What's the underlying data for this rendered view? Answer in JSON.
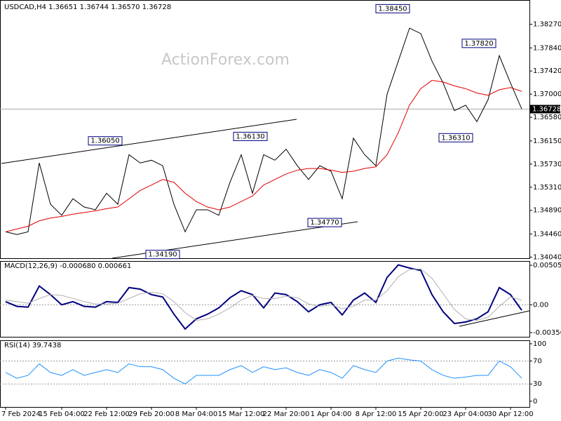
{
  "chart_data": [
    {
      "type": "line",
      "title": "USDCAD,H4  1.36651 1.36744 1.36570 1.36728",
      "watermark": "ActionForex.com",
      "ylim": [
        1.3402,
        1.3871
      ],
      "yticks": [
        {
          "value": 1.3404,
          "label": "1.34040"
        },
        {
          "value": 1.3446,
          "label": "1.34460"
        },
        {
          "value": 1.3489,
          "label": "1.34890"
        },
        {
          "value": 1.3531,
          "label": "1.35310"
        },
        {
          "value": 1.3573,
          "label": "1.35730"
        },
        {
          "value": 1.3615,
          "label": "1.36150"
        },
        {
          "value": 1.3658,
          "label": "1.36580"
        },
        {
          "value": 1.37,
          "label": "1.37000"
        },
        {
          "value": 1.3742,
          "label": "1.37420"
        },
        {
          "value": 1.3784,
          "label": "1.37840"
        },
        {
          "value": 1.3827,
          "label": "1.38270"
        }
      ],
      "last_price": {
        "value": 1.36728,
        "label": "1.36728"
      },
      "annotations": [
        {
          "value": 1.3605,
          "label": "1.36050"
        },
        {
          "value": 1.3613,
          "label": "1.36130"
        },
        {
          "value": 1.3419,
          "label": "1.34190"
        },
        {
          "value": 1.3477,
          "label": "1.34770"
        },
        {
          "value": 1.3845,
          "label": "1.38450"
        },
        {
          "value": 1.3782,
          "label": "1.37820"
        },
        {
          "value": 1.3631,
          "label": "1.36310"
        }
      ],
      "series": [
        {
          "color": "#000000",
          "values": [
            1.345,
            1.3445,
            1.345,
            1.3575,
            1.35,
            1.348,
            1.351,
            1.3495,
            1.349,
            1.352,
            1.35,
            1.359,
            1.3575,
            1.358,
            1.357,
            1.35,
            1.345,
            1.349,
            1.349,
            1.348,
            1.354,
            1.359,
            1.352,
            1.359,
            1.358,
            1.36,
            1.357,
            1.3545,
            1.357,
            1.356,
            1.351,
            1.362,
            1.359,
            1.357,
            1.37,
            1.376,
            1.382,
            1.381,
            1.376,
            1.372,
            1.367,
            1.368,
            1.365,
            1.369,
            1.377,
            1.372,
            1.3673
          ]
        },
        {
          "color": "#e00000",
          "values": [
            1.345,
            1.3455,
            1.346,
            1.347,
            1.3475,
            1.3478,
            1.3482,
            1.3485,
            1.3488,
            1.3492,
            1.3495,
            1.351,
            1.3525,
            1.3535,
            1.3545,
            1.354,
            1.352,
            1.3505,
            1.3495,
            1.349,
            1.3495,
            1.3505,
            1.3515,
            1.3535,
            1.3545,
            1.3555,
            1.3562,
            1.3565,
            1.3565,
            1.3562,
            1.3558,
            1.356,
            1.3565,
            1.3568,
            1.359,
            1.363,
            1.368,
            1.371,
            1.3725,
            1.3722,
            1.3715,
            1.371,
            1.3702,
            1.3698,
            1.3708,
            1.3712,
            1.3705
          ]
        }
      ]
    },
    {
      "type": "line",
      "title": "MACD(12,26,9) -0.000680 0.000661",
      "ylim": [
        -0.0041,
        0.0056
      ],
      "yticks": [
        0.005054,
        {
          "value": 0,
          "label": "0.00"
        },
        -0.003569
      ],
      "series": [
        {
          "color": "#000080",
          "values": [
            0.0004,
            -0.0002,
            -0.0003,
            0.0024,
            0.0013,
            0,
            0.0004,
            -0.0002,
            -0.0003,
            0.0004,
            0.0003,
            0.0022,
            0.002,
            0.0013,
            0.001,
            -0.0012,
            -0.0031,
            -0.0018,
            -0.0012,
            -0.0004,
            0.0009,
            0.0018,
            0.0013,
            -0.0004,
            0.0015,
            0.0013,
            0.0004,
            -0.0009,
            0,
            0.0003,
            -0.0013,
            0.0006,
            0.0015,
            0.0003,
            0.0035,
            0.0051,
            0.0047,
            0.0044,
            0.0013,
            -0.0009,
            -0.0024,
            -0.0022,
            -0.0018,
            -0.0009,
            0.0022,
            0.0013,
            -0.0007
          ]
        },
        {
          "color": "#b0b0b0",
          "values": [
            0.0006,
            0.0004,
            0.0002,
            0.0008,
            0.0013,
            0.0012,
            0.0008,
            0.0004,
            0.0001,
            0.0001,
            0.0002,
            0.0008,
            0.0014,
            0.0016,
            0.0014,
            0.0004,
            -0.001,
            -0.002,
            -0.0018,
            -0.0012,
            -0.0004,
            0.0006,
            0.0012,
            0.0008,
            0.0008,
            0.0011,
            0.0009,
            0.0001,
            -0.0002,
            0,
            -0.0005,
            -0.0002,
            0.0006,
            0.0006,
            0.0018,
            0.0036,
            0.0045,
            0.0046,
            0.0034,
            0.0014,
            -0.0006,
            -0.0018,
            -0.002,
            -0.0016,
            -0.0002,
            0.001,
            0.0006
          ]
        }
      ]
    },
    {
      "type": "line",
      "title": "RSI(14) 39.7438",
      "ylim": [
        -10,
        106
      ],
      "yticks": [
        100,
        70,
        30,
        0
      ],
      "levels": [
        70,
        30
      ],
      "categories": [
        "7 Feb 2024",
        null,
        null,
        null,
        null,
        "15 Feb 04:00",
        null,
        null,
        null,
        "22 Feb 12:00",
        null,
        null,
        null,
        "29 Feb 20:00",
        null,
        null,
        null,
        "8 Mar 04:00",
        null,
        null,
        null,
        "15 Mar 12:00",
        null,
        null,
        null,
        "22 Mar 20:00",
        null,
        null,
        null,
        "1 Apr 04:00",
        null,
        null,
        null,
        "8 Apr 12:00",
        null,
        null,
        null,
        "15 Apr 20:00",
        null,
        null,
        null,
        "23 Apr 04:00",
        null,
        null,
        null,
        "30 Apr 12:00",
        null
      ],
      "series": [
        {
          "color": "#1e90ff",
          "values": [
            50,
            40,
            45,
            65,
            50,
            45,
            55,
            45,
            50,
            55,
            50,
            65,
            60,
            60,
            55,
            40,
            30,
            45,
            45,
            45,
            55,
            62,
            50,
            60,
            55,
            58,
            50,
            45,
            55,
            50,
            40,
            62,
            55,
            50,
            70,
            75,
            72,
            70,
            55,
            45,
            40,
            42,
            45,
            45,
            70,
            60,
            40
          ]
        }
      ]
    }
  ]
}
